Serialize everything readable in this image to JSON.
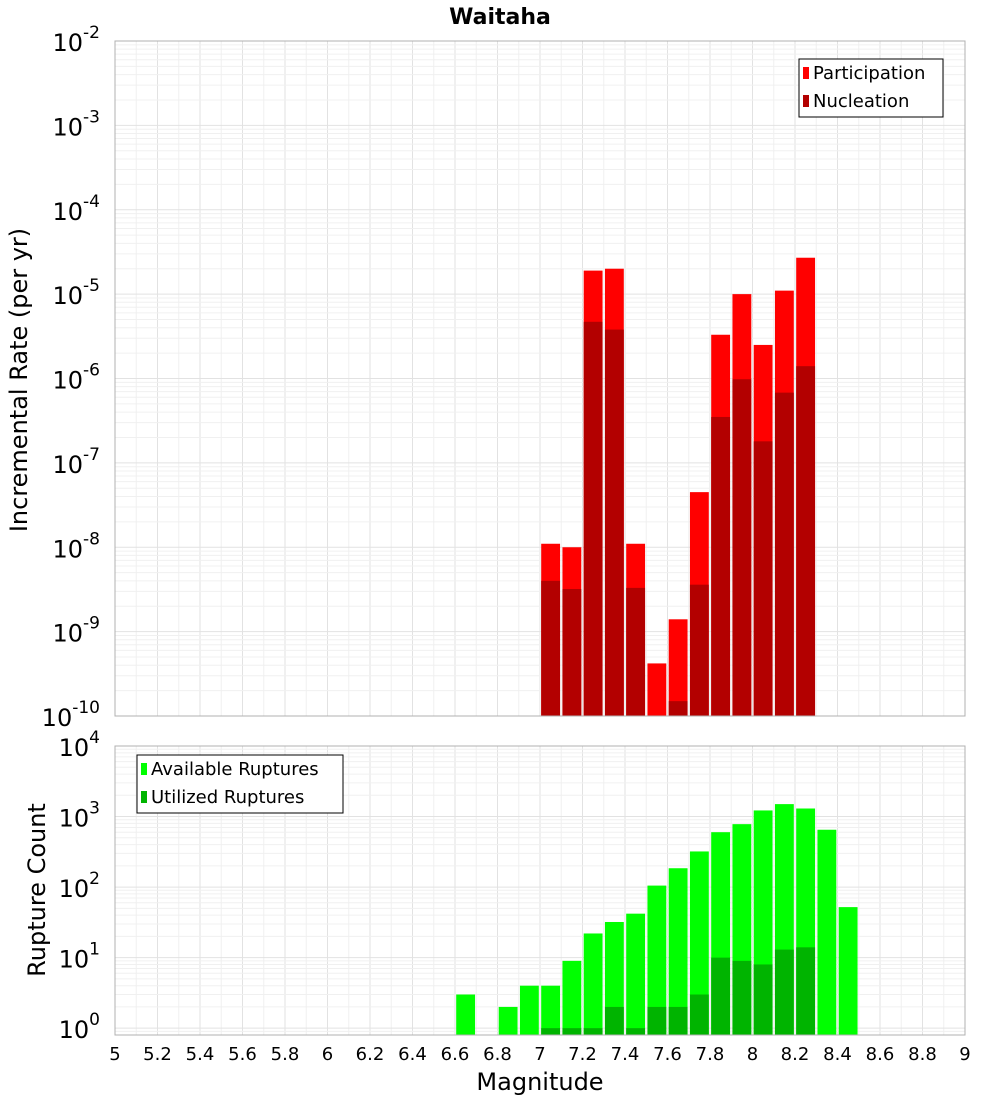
{
  "chart_data": [
    {
      "type": "bar",
      "title": "Waitaha",
      "xlabel": "",
      "ylabel": "Incremental Rate (per yr)",
      "xlim": [
        5,
        9
      ],
      "ylim": [
        1e-10,
        0.01
      ],
      "yscale": "log",
      "grid": true,
      "legend_position": "top-right",
      "bin_width": 0.1,
      "x": [
        7.05,
        7.15,
        7.25,
        7.35,
        7.45,
        7.55,
        7.65,
        7.75,
        7.85,
        7.95,
        8.05,
        8.15,
        8.25
      ],
      "series": [
        {
          "name": "Participation",
          "color": "#ff0000",
          "values": [
            1.1e-08,
            1e-08,
            1.9e-05,
            2e-05,
            1.1e-08,
            4.2e-10,
            1.4e-09,
            4.5e-08,
            3.3e-06,
            1e-05,
            2.5e-06,
            1.1e-05,
            2.7e-05
          ]
        },
        {
          "name": "Nucleation",
          "color": "#b30000",
          "values": [
            4e-09,
            3.2e-09,
            4.7e-06,
            3.8e-06,
            3.3e-09,
            null,
            1.5e-10,
            3.6e-09,
            3.5e-07,
            9.8e-07,
            1.8e-07,
            6.8e-07,
            1.4e-06
          ]
        }
      ]
    },
    {
      "type": "bar",
      "title": "",
      "xlabel": "Magnitude",
      "ylabel": "Rupture Count",
      "xlim": [
        5,
        9
      ],
      "ylim": [
        0.8,
        10000
      ],
      "yscale": "log",
      "grid": true,
      "legend_position": "top-left",
      "bin_width": 0.1,
      "x": [
        6.65,
        6.75,
        6.85,
        6.95,
        7.05,
        7.15,
        7.25,
        7.35,
        7.45,
        7.55,
        7.65,
        7.75,
        7.85,
        7.95,
        8.05,
        8.15,
        8.25,
        8.35,
        8.45
      ],
      "series": [
        {
          "name": "Available Ruptures",
          "color": "#00ff00",
          "values": [
            3,
            0,
            2,
            4,
            4,
            9,
            22,
            32,
            42,
            105,
            185,
            320,
            600,
            780,
            1220,
            1500,
            1300,
            650,
            52
          ]
        },
        {
          "name": "Utilized Ruptures",
          "color": "#00b400",
          "values": [
            0,
            0,
            0,
            0,
            1,
            1,
            1,
            2,
            1,
            2,
            2,
            3,
            10,
            9,
            8,
            13,
            14,
            0,
            0
          ]
        }
      ]
    }
  ],
  "xticks": [
    "5",
    "5.2",
    "5.4",
    "5.6",
    "5.8",
    "6",
    "6.2",
    "6.4",
    "6.6",
    "6.8",
    "7",
    "7.2",
    "7.4",
    "7.6",
    "7.8",
    "8",
    "8.2",
    "8.4",
    "8.6",
    "8.8",
    "9"
  ],
  "top_yticks": [
    {
      "base": "10",
      "exp": "-2",
      "value": 0.01
    },
    {
      "base": "10",
      "exp": "-3",
      "value": 0.001
    },
    {
      "base": "10",
      "exp": "-4",
      "value": 0.0001
    },
    {
      "base": "10",
      "exp": "-5",
      "value": 1e-05
    },
    {
      "base": "10",
      "exp": "-6",
      "value": 1e-06
    },
    {
      "base": "10",
      "exp": "-7",
      "value": 1e-07
    },
    {
      "base": "10",
      "exp": "-8",
      "value": 1e-08
    },
    {
      "base": "10",
      "exp": "-9",
      "value": 1e-09
    },
    {
      "base": "10",
      "exp": "-10",
      "value": 1e-10
    }
  ],
  "bottom_yticks": [
    {
      "base": "10",
      "exp": "4",
      "value": 10000
    },
    {
      "base": "10",
      "exp": "3",
      "value": 1000
    },
    {
      "base": "10",
      "exp": "2",
      "value": 100
    },
    {
      "base": "10",
      "exp": "1",
      "value": 10
    },
    {
      "base": "10",
      "exp": "0",
      "value": 1
    }
  ]
}
